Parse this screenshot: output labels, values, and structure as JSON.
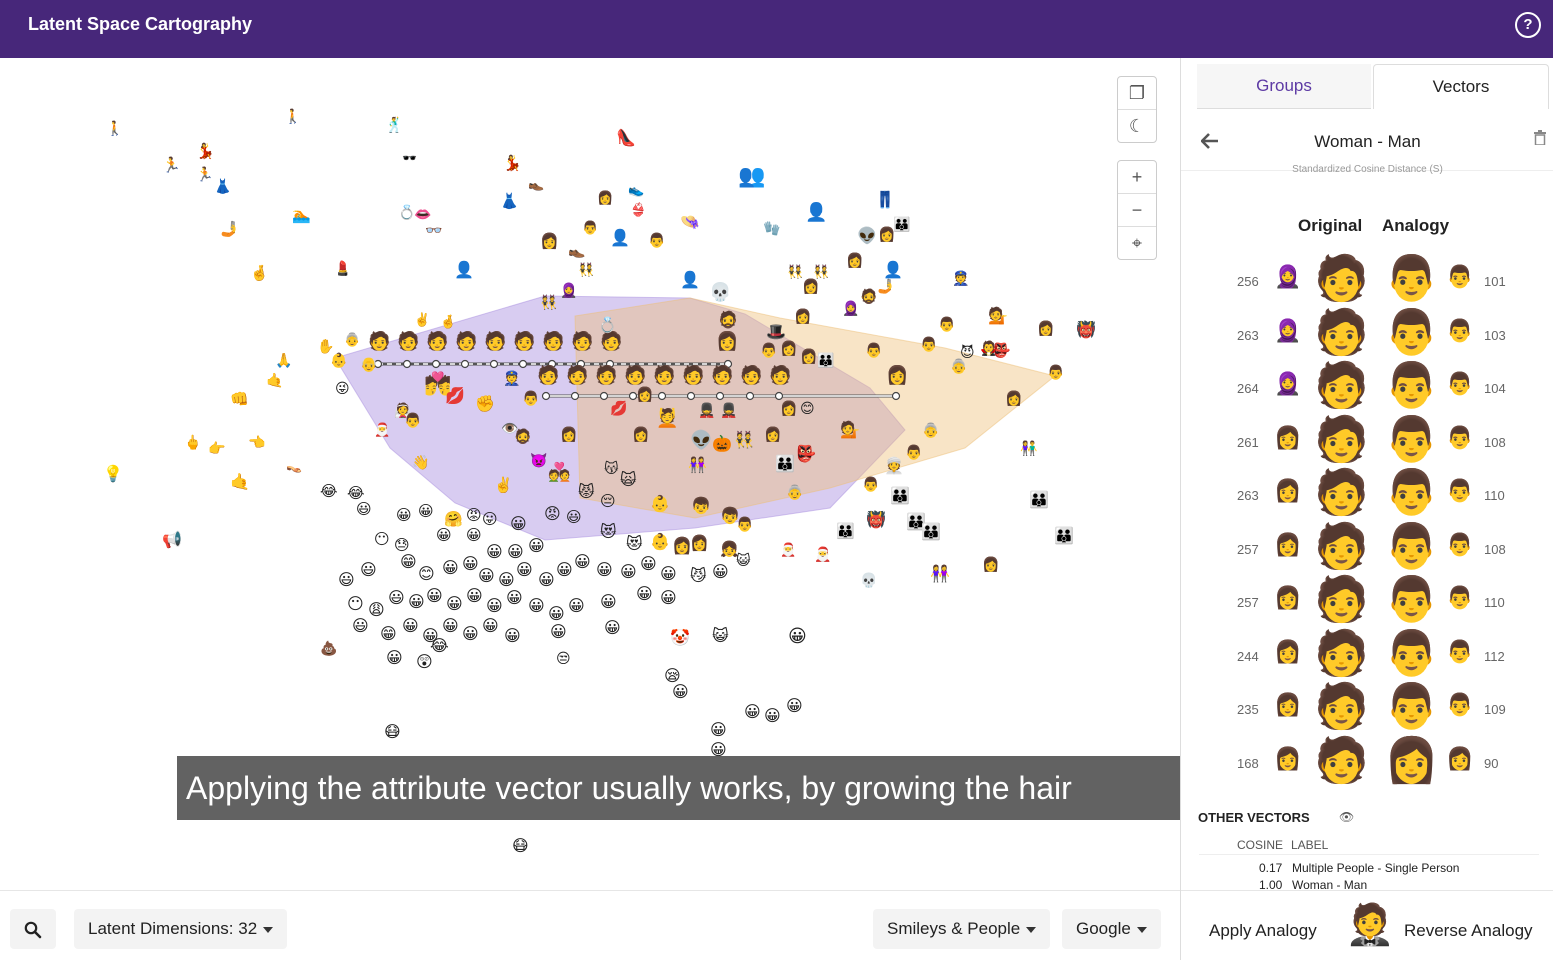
{
  "header": {
    "title": "Latent Space Cartography",
    "help_icon": "?"
  },
  "controls": {
    "fullscreen_icon": "❐",
    "night_icon": "☾",
    "zoom_in_icon": "+",
    "zoom_out_icon": "−",
    "recenter_icon": "⌖"
  },
  "caption": "Applying the attribute vector usually works, by growing the hair",
  "bottom_bar": {
    "search_icon": "⌕",
    "latent_dimensions": "Latent Dimensions: 32",
    "category": "Smileys & People",
    "source": "Google"
  },
  "panel": {
    "tabs": [
      {
        "label": "Groups"
      },
      {
        "label": "Vectors"
      }
    ],
    "vector_title": "Woman - Man",
    "back_icon": "🡐",
    "ghost_text": "Standardized Cosine Distance (S)",
    "col_original": "Original",
    "col_analogy": "Analogy",
    "rows": [
      {
        "left": "256",
        "small_left": "🧕",
        "original": "🧑",
        "analogy": "👨",
        "small_right": "👨",
        "right": "101"
      },
      {
        "left": "263",
        "small_left": "🧕",
        "original": "🧑",
        "analogy": "👨",
        "small_right": "👨",
        "right": "103"
      },
      {
        "left": "264",
        "small_left": "🧕",
        "original": "🧑",
        "analogy": "👨",
        "small_right": "👨",
        "right": "104"
      },
      {
        "left": "261",
        "small_left": "👩",
        "original": "🧑",
        "analogy": "👨",
        "small_right": "👨",
        "right": "108"
      },
      {
        "left": "263",
        "small_left": "👩",
        "original": "🧑",
        "analogy": "👨",
        "small_right": "👨",
        "right": "110"
      },
      {
        "left": "257",
        "small_left": "👩",
        "original": "🧑",
        "analogy": "👨",
        "small_right": "👨",
        "right": "108"
      },
      {
        "left": "257",
        "small_left": "👩",
        "original": "🧑",
        "analogy": "👨",
        "small_right": "👨",
        "right": "110"
      },
      {
        "left": "244",
        "small_left": "👩",
        "original": "🧑",
        "analogy": "👨",
        "small_right": "👨",
        "right": "112"
      },
      {
        "left": "235",
        "small_left": "👩",
        "original": "🧑",
        "analogy": "👨",
        "small_right": "👨",
        "right": "109"
      },
      {
        "left": "168",
        "small_left": "👩",
        "original": "🧑",
        "analogy": "👩",
        "small_right": "👩",
        "right": "90"
      }
    ],
    "other_vectors_title": "OTHER VECTORS",
    "other_vectors_icon": "👁",
    "other_cols": {
      "cosine": "COSINE",
      "label": "LABEL"
    },
    "other_rows": [
      {
        "cosine": "0.17",
        "label": "Multiple People - Single Person"
      },
      {
        "cosine": "1.00",
        "label": "Woman - Man"
      }
    ],
    "apply_label": "Apply Analogy",
    "reverse_label": "Reverse Analogy",
    "avatar": "🤵"
  },
  "colors": {
    "header": "#47277a",
    "accent": "#5d3aa4",
    "hull_purple": "#a98fe0",
    "hull_orange": "#eebf78"
  }
}
